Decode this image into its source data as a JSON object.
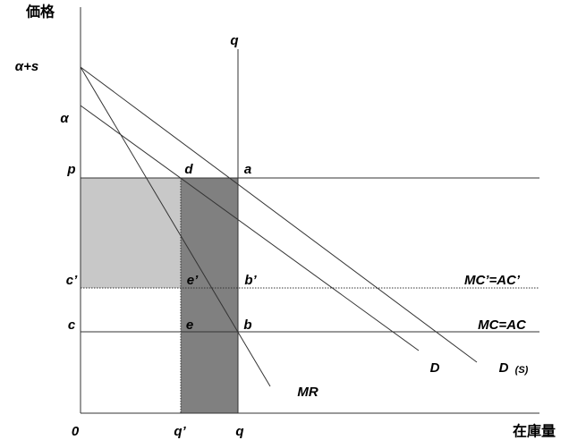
{
  "axes": {
    "y_label": "価格",
    "x_label": "在庫量",
    "origin": "0"
  },
  "price_labels": [
    "α+s",
    "α",
    "p",
    "c’",
    "c"
  ],
  "quantity_labels": {
    "top": "q",
    "q_prime": "q’",
    "q": "q"
  },
  "points": [
    "d",
    "a",
    "e’",
    "b’",
    "e",
    "b"
  ],
  "curves": {
    "mc_prime": "MC’=AC’",
    "mc": "MC=AC",
    "d": "D",
    "ds": "D",
    "ds_sub": "(S)",
    "mr": "MR"
  }
}
